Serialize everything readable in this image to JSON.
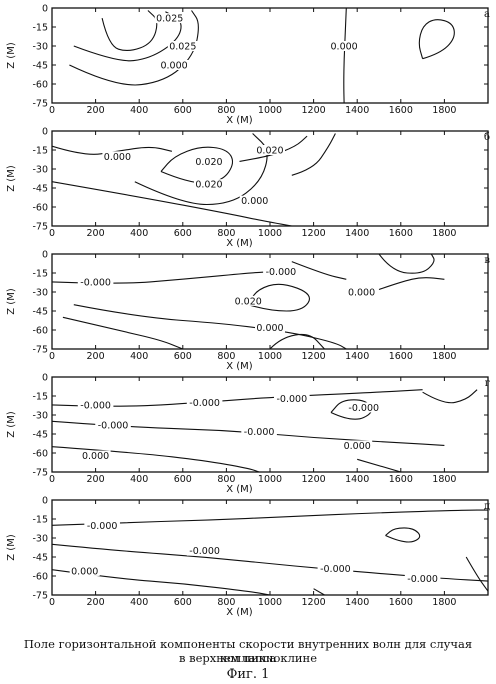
{
  "figure": {
    "caption_line1": "Поле горизонтальной компоненты скорости внутренних волн для случая коллапса",
    "caption_line2": "в верхнем пикноклине",
    "figure_label": "Фиг. 1"
  },
  "chart_data": [
    {
      "type": "contour",
      "panel_label": "а",
      "xlabel": "X (M)",
      "ylabel": "Z (M)",
      "xlim": [
        0,
        2000
      ],
      "ylim": [
        -75,
        0
      ],
      "x_ticks": [
        "0",
        "200",
        "400",
        "600",
        "800",
        "1000",
        "1200",
        "1400",
        "1600",
        "1800"
      ],
      "y_ticks": [
        "0",
        "-15",
        "-30",
        "-45",
        "-60",
        "-75"
      ],
      "contours": [
        {
          "level": "0.025",
          "points": [
            [
              100,
              -30
            ],
            [
              300,
              -43
            ],
            [
              450,
              -40
            ],
            [
              580,
              -25
            ],
            [
              600,
              -10
            ],
            [
              520,
              -3
            ]
          ]
        },
        {
          "level": "0.000",
          "points": [
            [
              80,
              -45
            ],
            [
              300,
              -63
            ],
            [
              520,
              -58
            ],
            [
              650,
              -38
            ],
            [
              680,
              -12
            ],
            [
              640,
              -2
            ]
          ]
        },
        {
          "level": "0.025",
          "points": [
            [
              230,
              -8
            ],
            [
              260,
              -30
            ],
            [
              350,
              -35
            ],
            [
              460,
              -28
            ],
            [
              490,
              -10
            ],
            [
              440,
              -2
            ]
          ]
        },
        {
          "level": "0.000",
          "points": [
            [
              1350,
              0
            ],
            [
              1345,
              -20
            ],
            [
              1340,
              -40
            ],
            [
              1338,
              -60
            ],
            [
              1340,
              -75
            ]
          ]
        },
        {
          "level": "",
          "points": [
            [
              1700,
              -40
            ],
            [
              1780,
              -36
            ],
            [
              1850,
              -24
            ],
            [
              1840,
              -12
            ],
            [
              1760,
              -8
            ],
            [
              1700,
              -14
            ],
            [
              1680,
              -28
            ],
            [
              1700,
              -40
            ]
          ]
        }
      ],
      "labels": [
        {
          "text": "0.000",
          "x": 1340,
          "y": -30
        },
        {
          "text": "0.025",
          "x": 600,
          "y": -30
        },
        {
          "text": "0.000",
          "x": 560,
          "y": -45
        },
        {
          "text": "0.025",
          "x": 540,
          "y": -8
        }
      ]
    },
    {
      "type": "contour",
      "panel_label": "б",
      "xlabel": "X (M)",
      "ylabel": "Z (M)",
      "xlim": [
        0,
        2000
      ],
      "ylim": [
        -75,
        0
      ],
      "x_ticks": [
        "0",
        "200",
        "400",
        "600",
        "800",
        "1000",
        "1200",
        "1400",
        "1600",
        "1800"
      ],
      "y_ticks": [
        "0",
        "-15",
        "-30",
        "-45",
        "-60",
        "-75"
      ],
      "contours": [
        {
          "level": "0.000",
          "points": [
            [
              0,
              -12
            ],
            [
              150,
              -20
            ],
            [
              300,
              -16
            ],
            [
              450,
              -12
            ],
            [
              550,
              -16
            ]
          ]
        },
        {
          "level": "0.020",
          "points": [
            [
              500,
              -32
            ],
            [
              640,
              -42
            ],
            [
              780,
              -40
            ],
            [
              840,
              -25
            ],
            [
              800,
              -14
            ],
            [
              680,
              -12
            ],
            [
              560,
              -20
            ],
            [
              500,
              -32
            ]
          ]
        },
        {
          "level": "0.000",
          "points": [
            [
              380,
              -40
            ],
            [
              600,
              -58
            ],
            [
              820,
              -58
            ],
            [
              960,
              -40
            ],
            [
              1000,
              -15
            ],
            [
              920,
              -2
            ]
          ]
        },
        {
          "level": "0.020",
          "points": [
            [
              860,
              -24
            ],
            [
              1000,
              -20
            ],
            [
              1120,
              -12
            ],
            [
              1170,
              -4
            ]
          ]
        },
        {
          "level": "",
          "points": [
            [
              1100,
              -35
            ],
            [
              1200,
              -30
            ],
            [
              1270,
              -12
            ],
            [
              1300,
              -2
            ]
          ]
        },
        {
          "level": "0.000",
          "points": [
            [
              0,
              -40
            ],
            [
              400,
              -52
            ],
            [
              800,
              -65
            ],
            [
              1000,
              -72
            ],
            [
              1100,
              -75
            ]
          ]
        }
      ],
      "labels": [
        {
          "text": "0.000",
          "x": 300,
          "y": -20
        },
        {
          "text": "0.020",
          "x": 720,
          "y": -24
        },
        {
          "text": "0.020",
          "x": 720,
          "y": -42
        },
        {
          "text": "0.020",
          "x": 1000,
          "y": -15
        },
        {
          "text": "0.000",
          "x": 930,
          "y": -55
        }
      ]
    },
    {
      "type": "contour",
      "panel_label": "в",
      "xlabel": "X (M)",
      "ylabel": "Z (M)",
      "xlim": [
        0,
        2000
      ],
      "ylim": [
        -75,
        0
      ],
      "x_ticks": [
        "0",
        "200",
        "400",
        "600",
        "800",
        "1000",
        "1200",
        "1400",
        "1600",
        "1800"
      ],
      "y_ticks": [
        "0",
        "-15",
        "-30",
        "-45",
        "-60",
        "-75"
      ],
      "contours": [
        {
          "level": "0.000",
          "points": [
            [
              0,
              -22
            ],
            [
              300,
              -24
            ],
            [
              600,
              -20
            ],
            [
              900,
              -15
            ],
            [
              1000,
              -14
            ]
          ]
        },
        {
          "level": "0.000",
          "points": [
            [
              1100,
              -6
            ],
            [
              1250,
              -16
            ],
            [
              1350,
              -20
            ]
          ]
        },
        {
          "level": "0.000",
          "points": [
            [
              1500,
              -28
            ],
            [
              1600,
              -22
            ],
            [
              1700,
              -18
            ],
            [
              1800,
              -20
            ]
          ]
        },
        {
          "level": "0.020",
          "points": [
            [
              900,
              -40
            ],
            [
              1000,
              -45
            ],
            [
              1150,
              -45
            ],
            [
              1200,
              -32
            ],
            [
              1050,
              -22
            ],
            [
              940,
              -28
            ],
            [
              900,
              -40
            ]
          ]
        },
        {
          "level": "",
          "points": [
            [
              1500,
              0
            ],
            [
              1560,
              -14
            ],
            [
              1700,
              -16
            ],
            [
              1760,
              -6
            ],
            [
              1740,
              0
            ]
          ]
        },
        {
          "level": "0.000",
          "points": [
            [
              100,
              -40
            ],
            [
              400,
              -50
            ],
            [
              800,
              -55
            ],
            [
              1100,
              -62
            ],
            [
              1300,
              -70
            ],
            [
              1350,
              -75
            ]
          ]
        },
        {
          "level": "",
          "points": [
            [
              50,
              -50
            ],
            [
              300,
              -60
            ],
            [
              500,
              -68
            ],
            [
              600,
              -75
            ]
          ]
        },
        {
          "level": "",
          "points": [
            [
              1000,
              -75
            ],
            [
              1050,
              -66
            ],
            [
              1180,
              -62
            ],
            [
              1250,
              -75
            ]
          ]
        }
      ],
      "labels": [
        {
          "text": "-0.000",
          "x": 200,
          "y": -22
        },
        {
          "text": "-0.000",
          "x": 1050,
          "y": -14
        },
        {
          "text": "0.000",
          "x": 1420,
          "y": -30
        },
        {
          "text": "0.020",
          "x": 900,
          "y": -37
        },
        {
          "text": "0.000",
          "x": 1000,
          "y": -58
        }
      ]
    },
    {
      "type": "contour",
      "panel_label": "г",
      "xlabel": "X (M)",
      "ylabel": "Z (M)",
      "xlim": [
        0,
        2000
      ],
      "ylim": [
        -75,
        0
      ],
      "x_ticks": [
        "0",
        "200",
        "400",
        "600",
        "800",
        "1000",
        "1200",
        "1400",
        "1600",
        "1800"
      ],
      "y_ticks": [
        "0",
        "-15",
        "-30",
        "-45",
        "-60",
        "-75"
      ],
      "contours": [
        {
          "level": "0.000",
          "points": [
            [
              0,
              -22
            ],
            [
              300,
              -24
            ],
            [
              700,
              -20
            ],
            [
              1000,
              -16
            ],
            [
              1500,
              -12
            ],
            [
              1700,
              -10
            ]
          ]
        },
        {
          "level": "0.000",
          "points": [
            [
              1280,
              -28
            ],
            [
              1380,
              -36
            ],
            [
              1480,
              -28
            ],
            [
              1440,
              -18
            ],
            [
              1330,
              -18
            ],
            [
              1280,
              -28
            ]
          ]
        },
        {
          "level": "0.000",
          "points": [
            [
              0,
              -35
            ],
            [
              400,
              -40
            ],
            [
              800,
              -42
            ],
            [
              1200,
              -48
            ],
            [
              1600,
              -52
            ],
            [
              1800,
              -54
            ]
          ]
        },
        {
          "level": "0.000",
          "points": [
            [
              0,
              -55
            ],
            [
              400,
              -60
            ],
            [
              700,
              -66
            ],
            [
              900,
              -72
            ],
            [
              950,
              -75
            ]
          ]
        },
        {
          "level": "",
          "points": [
            [
              1700,
              -12
            ],
            [
              1800,
              -22
            ],
            [
              1900,
              -18
            ],
            [
              1950,
              -10
            ]
          ]
        },
        {
          "level": "",
          "points": [
            [
              1400,
              -65
            ],
            [
              1600,
              -75
            ]
          ]
        }
      ],
      "labels": [
        {
          "text": "-0.000",
          "x": 200,
          "y": -22
        },
        {
          "text": "-0.000",
          "x": 700,
          "y": -20
        },
        {
          "text": "-0.000",
          "x": 1100,
          "y": -17
        },
        {
          "text": "-0.000",
          "x": 1430,
          "y": -24
        },
        {
          "text": "-0.000",
          "x": 280,
          "y": -38
        },
        {
          "text": "-0.000",
          "x": 950,
          "y": -43
        },
        {
          "text": "0.000",
          "x": 1400,
          "y": -54
        },
        {
          "text": "0.000",
          "x": 200,
          "y": -62
        }
      ]
    },
    {
      "type": "contour",
      "panel_label": "д",
      "xlabel": "X (M)",
      "ylabel": "Z (M)",
      "xlim": [
        0,
        2000
      ],
      "ylim": [
        -75,
        0
      ],
      "x_ticks": [
        "0",
        "200",
        "400",
        "600",
        "800",
        "1000",
        "1200",
        "1400",
        "1600",
        "1800"
      ],
      "y_ticks": [
        "0",
        "-15",
        "-30",
        "-45",
        "-60",
        "-75"
      ],
      "contours": [
        {
          "level": "0.000",
          "points": [
            [
              0,
              -20
            ],
            [
              300,
              -18
            ],
            [
              700,
              -16
            ],
            [
              1100,
              -13
            ],
            [
              1500,
              -10
            ],
            [
              1900,
              -8
            ],
            [
              2000,
              -8
            ]
          ]
        },
        {
          "level": "0.000",
          "points": [
            [
              1530,
              -28
            ],
            [
              1620,
              -35
            ],
            [
              1700,
              -30
            ],
            [
              1660,
              -22
            ],
            [
              1570,
              -22
            ],
            [
              1530,
              -28
            ]
          ]
        },
        {
          "level": "0.000",
          "points": [
            [
              0,
              -35
            ],
            [
              300,
              -40
            ],
            [
              700,
              -45
            ],
            [
              1100,
              -52
            ],
            [
              1500,
              -58
            ],
            [
              1800,
              -62
            ],
            [
              2000,
              -64
            ]
          ]
        },
        {
          "level": "0.000",
          "points": [
            [
              0,
              -55
            ],
            [
              300,
              -62
            ],
            [
              600,
              -66
            ],
            [
              900,
              -72
            ],
            [
              1000,
              -75
            ]
          ]
        },
        {
          "level": "",
          "points": [
            [
              1900,
              -45
            ],
            [
              1950,
              -60
            ],
            [
              2000,
              -72
            ]
          ]
        },
        {
          "level": "",
          "points": [
            [
              1200,
              -70
            ],
            [
              1250,
              -75
            ]
          ]
        }
      ],
      "labels": [
        {
          "text": "-0.000",
          "x": 230,
          "y": -20
        },
        {
          "text": "-0.000",
          "x": 700,
          "y": -40
        },
        {
          "text": "-0.000",
          "x": 1300,
          "y": -54
        },
        {
          "text": "-0.000",
          "x": 1700,
          "y": -62
        },
        {
          "text": "0.000",
          "x": 150,
          "y": -56
        }
      ]
    }
  ]
}
